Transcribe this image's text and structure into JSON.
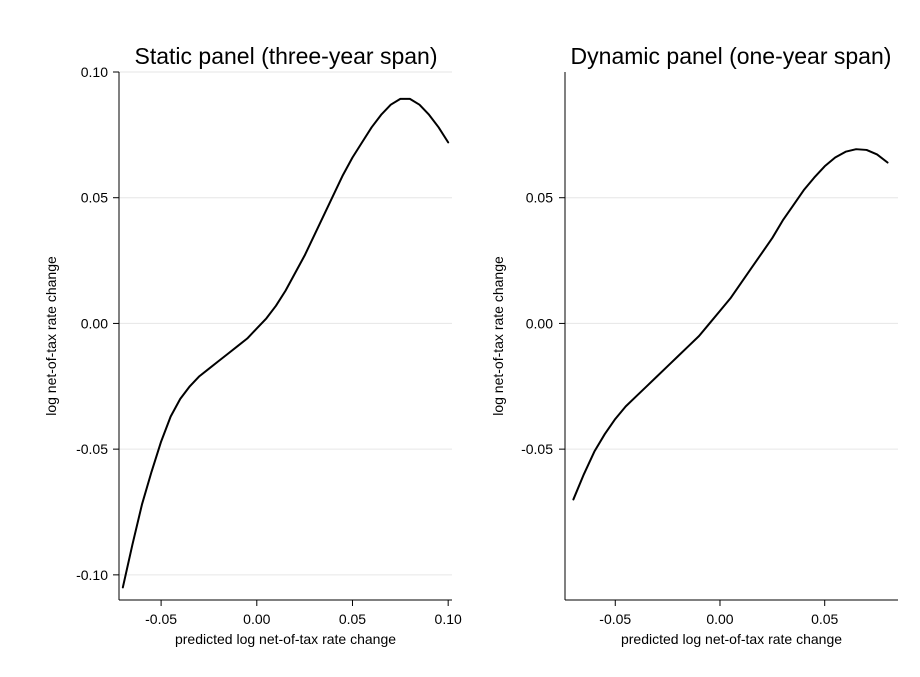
{
  "chart_data": [
    {
      "type": "line",
      "title": "Static panel (three-year span)",
      "xlabel": "predicted log net-of-tax rate change",
      "ylabel": "log net-of-tax rate change",
      "xlim": [
        -0.072,
        0.102
      ],
      "ylim": [
        -0.11,
        0.1
      ],
      "x_ticks": [
        -0.05,
        0.0,
        0.05,
        0.1
      ],
      "x_tick_labels": [
        "-0.05",
        "0.00",
        "0.05",
        "0.10"
      ],
      "y_ticks": [
        -0.1,
        -0.05,
        0.0,
        0.05,
        0.1
      ],
      "y_tick_labels": [
        "-0.10",
        "-0.05",
        "0.00",
        "0.05",
        "0.10"
      ],
      "grid": "horizontal",
      "series": [
        {
          "color": "#000000",
          "x": [
            -0.07,
            -0.065,
            -0.06,
            -0.055,
            -0.05,
            -0.045,
            -0.04,
            -0.035,
            -0.03,
            -0.025,
            -0.02,
            -0.015,
            -0.01,
            -0.005,
            0.0,
            0.005,
            0.01,
            0.015,
            0.02,
            0.025,
            0.03,
            0.035,
            0.04,
            0.045,
            0.05,
            0.055,
            0.06,
            0.065,
            0.07,
            0.075,
            0.08,
            0.085,
            0.09,
            0.095,
            0.1
          ],
          "y": [
            -0.105,
            -0.088,
            -0.072,
            -0.059,
            -0.047,
            -0.037,
            -0.03,
            -0.025,
            -0.021,
            -0.018,
            -0.015,
            -0.012,
            -0.009,
            -0.006,
            -0.002,
            0.002,
            0.007,
            0.013,
            0.02,
            0.027,
            0.035,
            0.043,
            0.051,
            0.059,
            0.066,
            0.072,
            0.078,
            0.083,
            0.087,
            0.0893,
            0.0893,
            0.087,
            0.083,
            0.078,
            0.072
          ]
        }
      ]
    },
    {
      "type": "line",
      "title": "Dynamic panel (one-year span)",
      "xlabel": "predicted log net-of-tax rate change",
      "ylabel": "log net-of-tax rate change",
      "xlim": [
        -0.074,
        0.085
      ],
      "ylim": [
        -0.11,
        0.1
      ],
      "x_ticks": [
        -0.05,
        0.0,
        0.05
      ],
      "x_tick_labels": [
        "-0.05",
        "0.00",
        "0.05"
      ],
      "y_ticks": [
        -0.05,
        0.0,
        0.05
      ],
      "y_tick_labels": [
        "-0.05",
        "0.00",
        "0.05"
      ],
      "grid": "horizontal",
      "series": [
        {
          "color": "#000000",
          "x": [
            -0.07,
            -0.065,
            -0.06,
            -0.055,
            -0.05,
            -0.045,
            -0.04,
            -0.035,
            -0.03,
            -0.025,
            -0.02,
            -0.015,
            -0.01,
            -0.005,
            0.0,
            0.005,
            0.01,
            0.015,
            0.02,
            0.025,
            0.03,
            0.035,
            0.04,
            0.045,
            0.05,
            0.055,
            0.06,
            0.065,
            0.07,
            0.075,
            0.08
          ],
          "y": [
            -0.07,
            -0.06,
            -0.051,
            -0.044,
            -0.038,
            -0.033,
            -0.029,
            -0.025,
            -0.021,
            -0.017,
            -0.013,
            -0.009,
            -0.005,
            0.0,
            0.005,
            0.01,
            0.016,
            0.022,
            0.028,
            0.034,
            0.041,
            0.047,
            0.053,
            0.058,
            0.0625,
            0.066,
            0.0683,
            0.0693,
            0.069,
            0.0672,
            0.064
          ]
        }
      ]
    }
  ]
}
